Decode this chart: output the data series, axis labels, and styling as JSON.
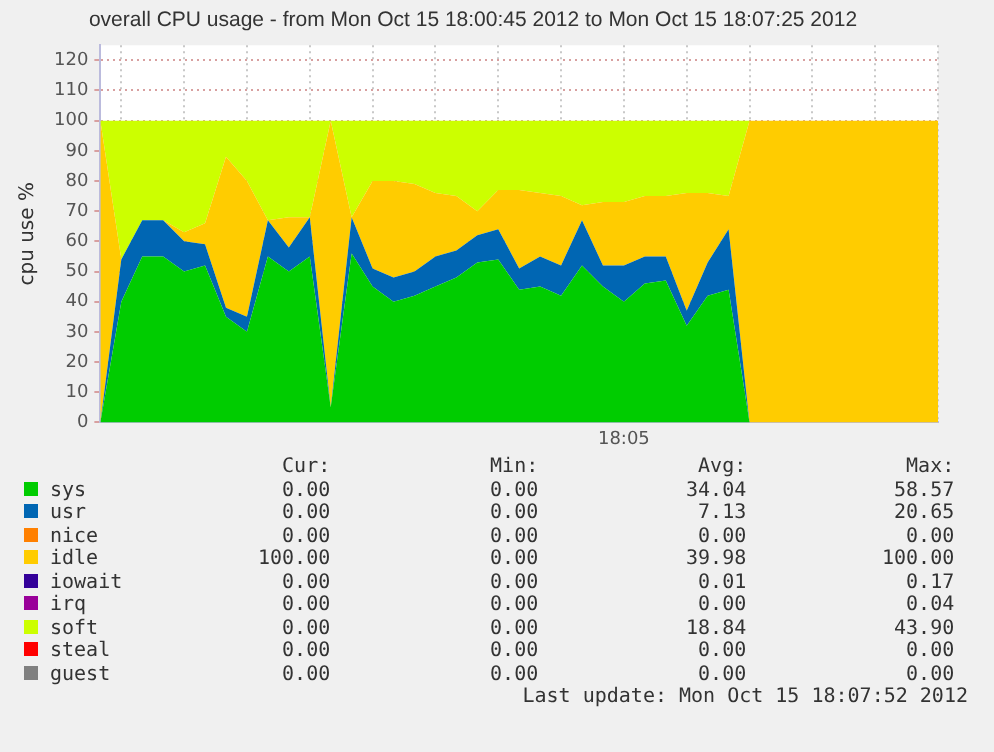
{
  "chart_data": {
    "type": "area",
    "title": "overall CPU usage - from Mon Oct 15 18:00:45 2012 to Mon Oct 15 18:07:25 2012",
    "ylabel": "cpu use %",
    "stacked": true,
    "grid": true,
    "legend": "bottom",
    "categories": [
      null,
      null,
      null,
      null,
      null,
      null,
      null,
      null,
      null,
      null,
      null,
      null,
      null,
      null,
      null,
      null,
      null,
      null,
      null,
      null,
      null,
      null,
      null,
      null,
      null,
      "18:05",
      null,
      null,
      null,
      null,
      null,
      null,
      null,
      null,
      null,
      null,
      null,
      null,
      null,
      null,
      null
    ],
    "ylim": [
      0,
      125
    ],
    "yticks": [
      0,
      10,
      20,
      30,
      40,
      50,
      60,
      70,
      80,
      90,
      100,
      110,
      120
    ],
    "series": [
      {
        "name": "sys",
        "color": "#00cc00",
        "values": [
          0,
          40,
          55,
          55,
          50,
          52,
          35,
          30,
          55,
          50,
          55,
          5,
          56,
          45,
          40,
          42,
          45,
          48,
          53,
          54,
          44,
          45,
          42,
          52,
          45,
          40,
          46,
          47,
          32,
          42,
          44,
          0,
          0,
          0,
          0,
          0,
          0,
          0,
          0,
          0,
          0
        ]
      },
      {
        "name": "usr",
        "color": "#0066b3",
        "values": [
          0,
          14,
          12,
          12,
          10,
          7,
          3,
          5,
          12,
          8,
          13,
          0,
          12,
          6,
          8,
          8,
          10,
          9,
          9,
          10,
          7,
          10,
          10,
          15,
          7,
          12,
          9,
          8,
          5,
          11,
          20,
          0,
          0,
          0,
          0,
          0,
          0,
          0,
          0,
          0,
          0
        ]
      },
      {
        "name": "nice",
        "color": "#ff8000",
        "values": [
          null,
          null,
          null,
          null,
          null,
          null,
          null,
          null,
          null,
          null,
          null,
          null,
          null,
          null,
          null,
          null,
          null,
          null,
          null,
          null,
          null,
          null,
          null,
          null,
          null,
          null,
          null,
          null,
          null,
          null,
          null,
          null,
          null,
          null,
          null,
          null,
          null,
          null,
          null,
          null,
          null
        ]
      },
      {
        "name": "idle",
        "color": "#ffcc00",
        "values": [
          100,
          0,
          0,
          0,
          3,
          7,
          50,
          45,
          0,
          10,
          0,
          95,
          0,
          29,
          32,
          29,
          21,
          18,
          8,
          13,
          26,
          21,
          23,
          5,
          21,
          21,
          20,
          20,
          39,
          23,
          11,
          100,
          100,
          100,
          100,
          100,
          100,
          100,
          100,
          100,
          100
        ]
      },
      {
        "name": "iowait",
        "color": "#330099",
        "values": [
          null,
          null,
          null,
          null,
          null,
          null,
          null,
          null,
          null,
          null,
          null,
          null,
          null,
          null,
          null,
          null,
          null,
          null,
          null,
          null,
          null,
          null,
          null,
          null,
          null,
          null,
          null,
          null,
          null,
          null,
          null,
          null,
          null,
          null,
          null,
          null,
          null,
          null,
          null,
          null,
          null
        ]
      },
      {
        "name": "irq",
        "color": "#990099",
        "values": [
          null,
          null,
          null,
          null,
          null,
          null,
          null,
          null,
          null,
          null,
          null,
          null,
          null,
          null,
          null,
          null,
          null,
          null,
          null,
          null,
          null,
          null,
          null,
          null,
          null,
          null,
          null,
          null,
          null,
          null,
          null,
          null,
          null,
          null,
          null,
          null,
          null,
          null,
          null,
          null,
          null
        ]
      },
      {
        "name": "soft",
        "color": "#ccff00",
        "values": [
          0,
          46,
          33,
          33,
          37,
          34,
          12,
          20,
          33,
          32,
          32,
          0,
          32,
          20,
          20,
          21,
          24,
          25,
          30,
          23,
          23,
          24,
          25,
          28,
          27,
          27,
          25,
          25,
          24,
          24,
          25,
          0,
          0,
          0,
          0,
          0,
          0,
          0,
          0,
          0,
          0
        ]
      },
      {
        "name": "steal",
        "color": "#ff0000",
        "values": [
          null,
          null,
          null,
          null,
          null,
          null,
          null,
          null,
          null,
          null,
          null,
          null,
          null,
          null,
          null,
          null,
          null,
          null,
          null,
          null,
          null,
          null,
          null,
          null,
          null,
          null,
          null,
          null,
          null,
          null,
          null,
          null,
          null,
          null,
          null,
          null,
          null,
          null,
          null,
          null,
          null
        ]
      },
      {
        "name": "guest",
        "color": "#808080",
        "values": [
          null,
          null,
          null,
          null,
          null,
          null,
          null,
          null,
          null,
          null,
          null,
          null,
          null,
          null,
          null,
          null,
          null,
          null,
          null,
          null,
          null,
          null,
          null,
          null,
          null,
          null,
          null,
          null,
          null,
          null,
          null,
          null,
          null,
          null,
          null,
          null,
          null,
          null,
          null,
          null,
          null
        ]
      }
    ],
    "annotations": [
      "Cur:",
      "Min:",
      "Avg:",
      "Max:",
      "0.00",
      "0.00",
      "34.04",
      "58.57",
      "0.00",
      "0.00",
      "7.13",
      "20.65",
      "0.00",
      "0.00",
      "0.00",
      "0.00",
      "100.00",
      "0.00",
      "39.98",
      "100.00",
      "0.00",
      "0.00",
      "0.01",
      "0.17",
      "0.00",
      "0.00",
      "0.00",
      "0.04",
      "0.00",
      "0.00",
      "18.84",
      "43.90",
      "0.00",
      "0.00",
      "0.00",
      "0.00",
      "0.00",
      "0.00",
      "0.00",
      "0.00",
      "Last update: Mon Oct 15 18:07:52 2012"
    ]
  }
}
